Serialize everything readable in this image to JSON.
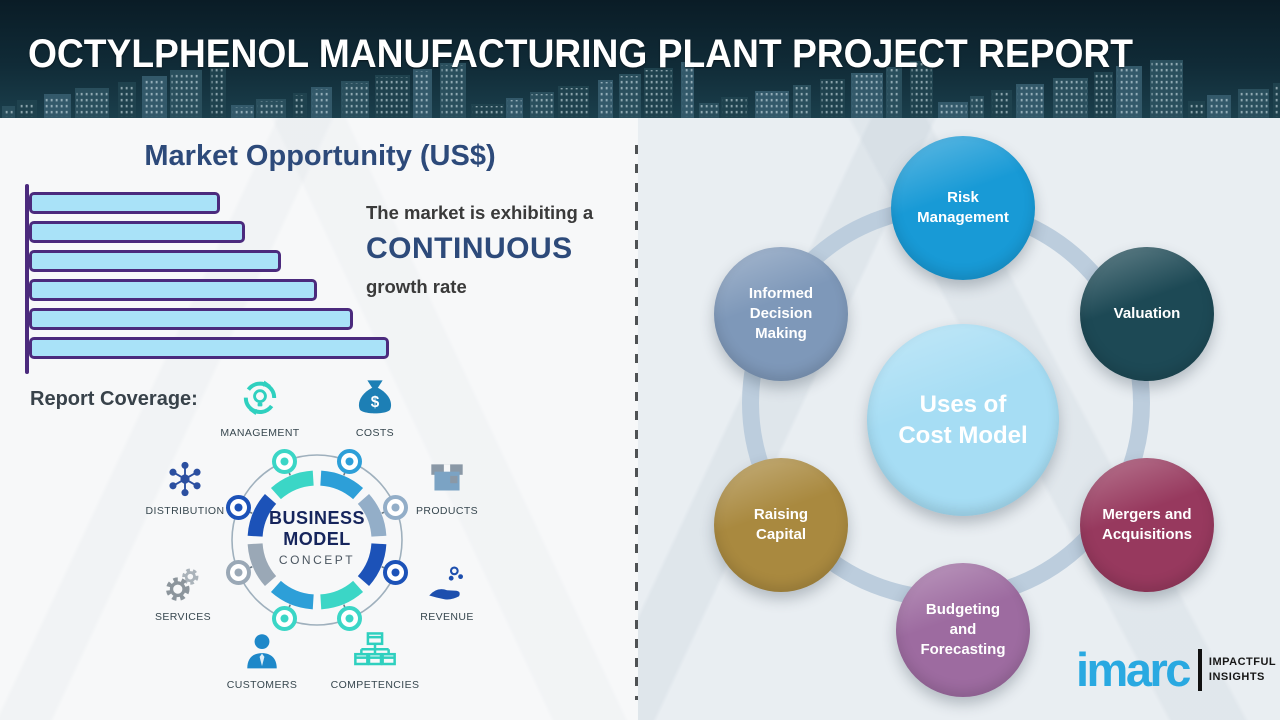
{
  "header": {
    "title": "OCTYLPHENOL MANUFACTURING PLANT PROJECT REPORT"
  },
  "chart_data": {
    "type": "bar",
    "orientation": "horizontal",
    "title": "Market Opportunity (US$)",
    "categories": [
      "",
      "",
      "",
      "",
      "",
      ""
    ],
    "values": [
      53,
      60,
      70,
      80,
      90,
      100
    ],
    "xlabel": "",
    "ylabel": "",
    "bar_fill": "#a9e2f8",
    "bar_border": "#4b2a7d",
    "annotations": [
      "The market is exhibiting a",
      "CONTINUOUS",
      "growth rate"
    ]
  },
  "left": {
    "report_coverage_label": "Report Coverage:",
    "business_model": {
      "center_line1": "BUSINESS",
      "center_line2": "MODEL",
      "center_line3": "CONCEPT",
      "items": [
        "MANAGEMENT",
        "COSTS",
        "DISTRIBUTION",
        "PRODUCTS",
        "SERVICES",
        "REVENUE",
        "CUSTOMERS",
        "COMPETENCIES"
      ]
    }
  },
  "right": {
    "center_line1": "Uses of",
    "center_line2": "Cost Model",
    "center_color": "#a6ddf4",
    "bubbles": [
      {
        "label": "Risk Management",
        "color": "#189ad6"
      },
      {
        "label": "Informed Decision Making",
        "color": "#7e98b9"
      },
      {
        "label": "Valuation",
        "color": "#1d4955"
      },
      {
        "label": "Raising Capital",
        "color": "#a9893f"
      },
      {
        "label": "Mergers and Acquisitions",
        "color": "#97395e"
      },
      {
        "label": "Budgeting and Forecasting",
        "color": "#9d6ba0"
      }
    ]
  },
  "logo": {
    "brand": "imarc",
    "tagline1": "IMPACTFUL",
    "tagline2": "INSIGHTS"
  }
}
